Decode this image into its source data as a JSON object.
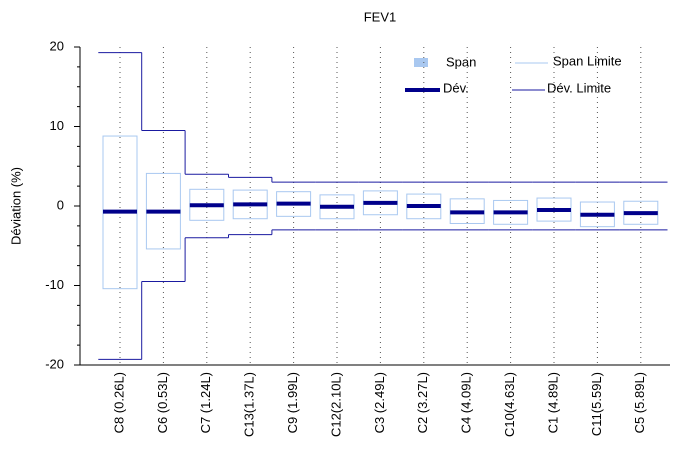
{
  "chart_data": {
    "type": "deviation-range",
    "title": "FEV1",
    "y_label": "Déviation  (%)",
    "categories": [
      "C8 (0.26L)",
      "C6 (0.53L)",
      "C7 (1.24L)",
      "C13(1.37L)",
      "C9 (1.99L)",
      "C12(2.10L)",
      "C3 (2.49L)",
      "C2 (3.27L)",
      "C4 (4.09L)",
      "C10(4.63L)",
      "C1 (4.89L)",
      "C11(5.59L)",
      "C5 (5.89L)"
    ],
    "series": [
      {
        "name": "Span",
        "color": "#a9c8f0",
        "low": [
          -10.4,
          -5.4,
          -1.8,
          -1.6,
          -1.3,
          -1.6,
          -1.1,
          -1.6,
          -2.2,
          -2.3,
          -1.9,
          -2.6,
          -2.3
        ],
        "high": [
          8.8,
          4.1,
          2.1,
          2.0,
          1.8,
          1.4,
          1.9,
          1.5,
          0.9,
          0.7,
          1.0,
          0.5,
          0.6
        ]
      },
      {
        "name": "Dév.",
        "color": "#00008b",
        "values": [
          -0.7,
          -0.7,
          0.1,
          0.2,
          0.3,
          -0.1,
          0.4,
          0.0,
          -0.8,
          -0.8,
          -0.5,
          -1.1,
          -0.9
        ]
      },
      {
        "name": "Span Limite",
        "color": "#a9c8f0"
      },
      {
        "name": "Dév. Limite",
        "color": "#1a1aa0",
        "low": [
          -19.3,
          -9.5,
          -4.0,
          -3.6,
          -3.0,
          -3.0,
          -3.0,
          -3.0,
          -3.0,
          -3.0,
          -3.0,
          -3.0,
          -3.0
        ],
        "high": [
          19.3,
          9.5,
          4.0,
          3.6,
          3.0,
          3.0,
          3.0,
          3.0,
          3.0,
          3.0,
          3.0,
          3.0,
          3.0
        ]
      }
    ],
    "ylim": [
      -20,
      20
    ],
    "yticks": [
      -20,
      -10,
      0,
      10,
      20
    ],
    "grid": true
  }
}
